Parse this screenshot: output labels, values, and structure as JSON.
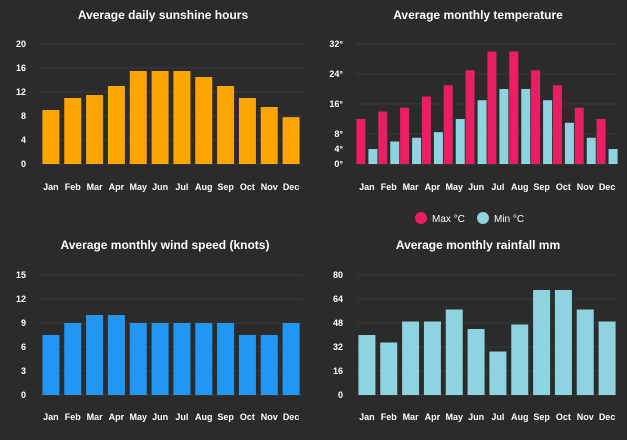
{
  "chart_data": [
    {
      "type": "bar",
      "title": "Average daily sunshine hours",
      "categories": [
        "Jan",
        "Feb",
        "Mar",
        "Apr",
        "May",
        "Jun",
        "Jul",
        "Aug",
        "Sep",
        "Oct",
        "Nov",
        "Dec"
      ],
      "series": [
        {
          "values": [
            9,
            11,
            11.5,
            13,
            15.5,
            15.5,
            15.5,
            14.5,
            13,
            11,
            9.5,
            7.8
          ],
          "color": "#ffa500"
        }
      ],
      "ylim": [
        0,
        20
      ],
      "yticks": [
        0,
        4,
        8,
        12,
        16,
        20
      ],
      "ytick_labels": [
        "0",
        "4",
        "8",
        "12",
        "16",
        "20"
      ],
      "grid": true
    },
    {
      "type": "bar",
      "title": "Average monthly temperature",
      "categories": [
        "Jan",
        "Feb",
        "Mar",
        "Apr",
        "May",
        "Jun",
        "Jul",
        "Aug",
        "Sep",
        "Oct",
        "Nov",
        "Dec"
      ],
      "series": [
        {
          "name": "Max °C",
          "values": [
            12,
            14,
            15,
            18,
            21,
            25,
            30,
            30,
            25,
            21,
            15,
            12
          ],
          "color": "#e91e63"
        },
        {
          "name": "Min °C",
          "values": [
            4,
            6,
            7,
            8.5,
            12,
            17,
            20,
            20,
            17,
            11,
            7,
            4
          ],
          "color": "#8dd3e0"
        }
      ],
      "ylim": [
        0,
        32
      ],
      "yticks": [
        0,
        8,
        16,
        24,
        32
      ],
      "ytick_labels": [
        "0°",
        "8°",
        "16°",
        "24°",
        "32°"
      ],
      "minor_ticks": [
        4
      ],
      "minor_tick_labels": [
        "4°"
      ],
      "legend": "bottom",
      "grid": true
    },
    {
      "type": "bar",
      "title": "Average monthly wind speed (knots)",
      "categories": [
        "Jan",
        "Feb",
        "Mar",
        "Apr",
        "May",
        "Jun",
        "Jul",
        "Aug",
        "Sep",
        "Oct",
        "Nov",
        "Dec"
      ],
      "series": [
        {
          "values": [
            7.5,
            9,
            10,
            10,
            9,
            9,
            9,
            9,
            9,
            7.5,
            7.5,
            9
          ],
          "color": "#2196f3"
        }
      ],
      "ylim": [
        0,
        15
      ],
      "yticks": [
        0,
        3,
        6,
        9,
        12,
        15
      ],
      "ytick_labels": [
        "0",
        "3",
        "6",
        "9",
        "12",
        "15"
      ],
      "grid": true
    },
    {
      "type": "bar",
      "title": "Average monthly rainfall mm",
      "categories": [
        "Jan",
        "Feb",
        "Mar",
        "Apr",
        "May",
        "Jun",
        "Jul",
        "Aug",
        "Sep",
        "Oct",
        "Nov",
        "Dec"
      ],
      "series": [
        {
          "values": [
            40,
            35,
            49,
            49,
            57,
            44,
            29,
            47,
            70,
            70,
            57,
            49
          ],
          "color": "#8dd3e0"
        }
      ],
      "ylim": [
        0,
        80
      ],
      "yticks": [
        0,
        16,
        32,
        48,
        64,
        80
      ],
      "ytick_labels": [
        "0",
        "16",
        "32",
        "48",
        "64",
        "80"
      ],
      "grid": true
    }
  ]
}
